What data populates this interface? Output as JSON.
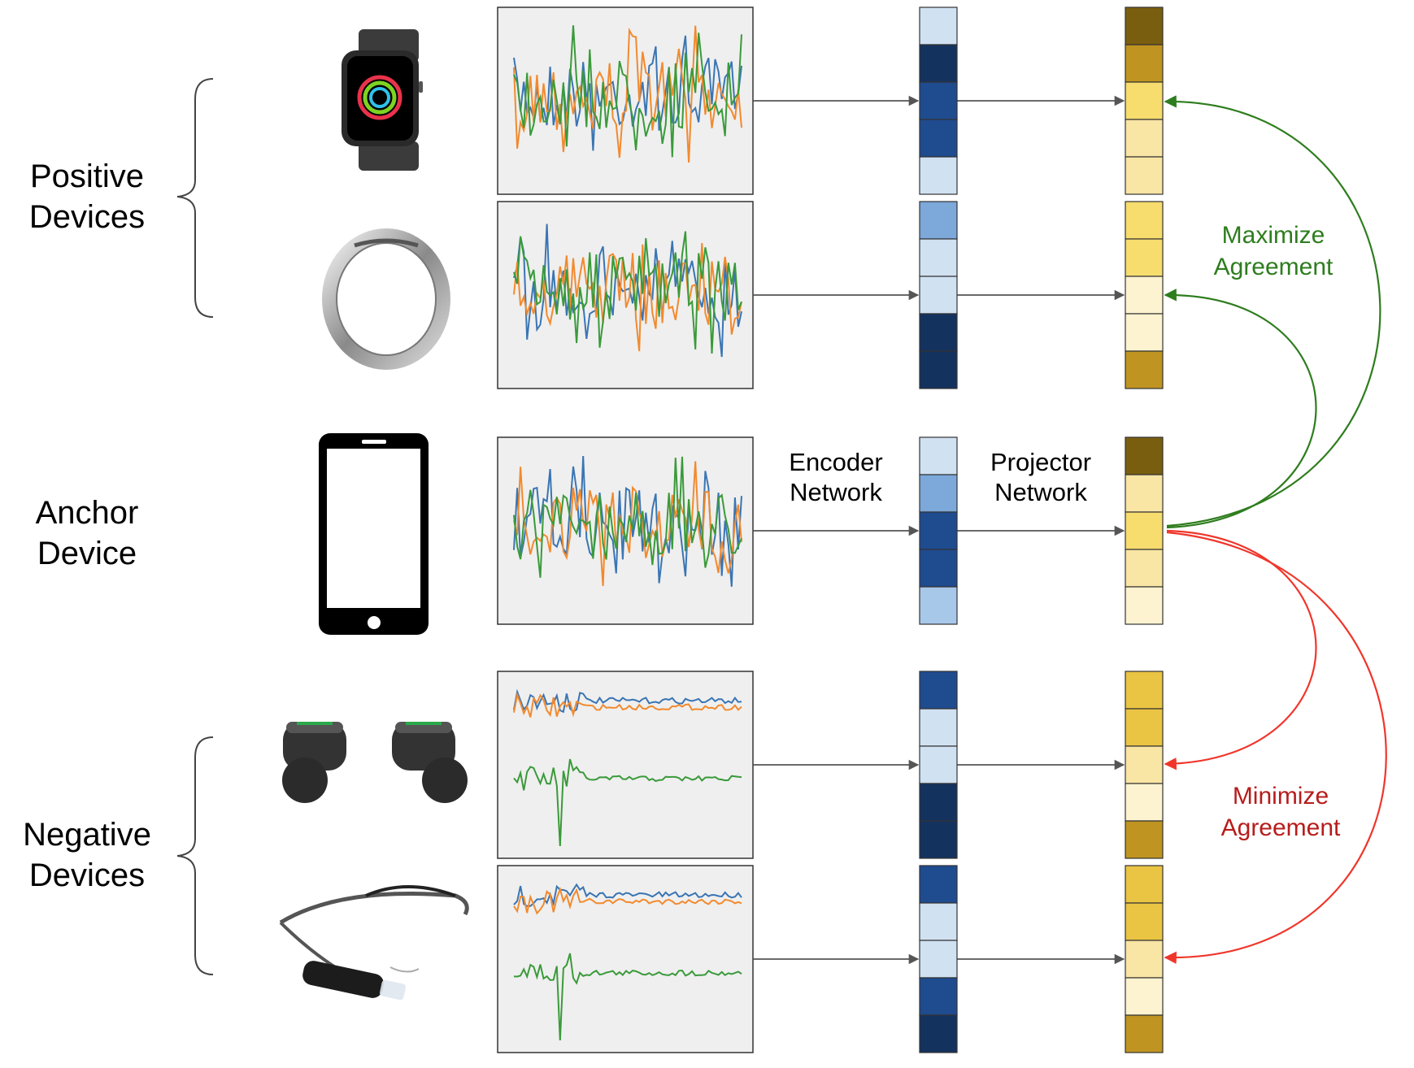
{
  "groups": {
    "positive": {
      "line1": "Positive",
      "line2": "Devices"
    },
    "anchor": {
      "line1": "Anchor",
      "line2": "Device"
    },
    "negative": {
      "line1": "Negative",
      "line2": "Devices"
    }
  },
  "encoder_label": {
    "line1": "Encoder",
    "line2": "Network"
  },
  "projector_label": {
    "line1": "Projector",
    "line2": "Network"
  },
  "maximize_label": {
    "line1": "Maximize",
    "line2": "Agreement"
  },
  "minimize_label": {
    "line1": "Minimize",
    "line2": "Agreement"
  },
  "devices": [
    {
      "name": "smartwatch",
      "icon": "smartwatch-icon",
      "group": "positive",
      "signal": "noisy"
    },
    {
      "name": "smart-ring",
      "icon": "ring-icon",
      "group": "positive",
      "signal": "noisy"
    },
    {
      "name": "smartphone",
      "icon": "smartphone-icon",
      "group": "anchor",
      "signal": "noisy"
    },
    {
      "name": "earbuds",
      "icon": "earbuds-icon",
      "group": "negative",
      "signal": "separated"
    },
    {
      "name": "smart-glasses",
      "icon": "glasses-icon",
      "group": "negative",
      "signal": "separated"
    }
  ],
  "colors": {
    "signal_blue": "#3a75b3",
    "signal_orange": "#f28a2e",
    "signal_green": "#3a9a3a",
    "plot_bg": "#efefef",
    "maximize_arrow": "#2e7d1e",
    "minimize_arrow": "#f0362b",
    "connector": "#555555"
  },
  "encoder_palette": [
    "#d0e1f2",
    "#14325e",
    "#1f4b8f",
    "#7ca8da",
    "#a8c8ea"
  ],
  "projector_palette": [
    "#7a5e10",
    "#bf9420",
    "#f7dc6e",
    "#f9e5a4",
    "#fdf3d0",
    "#eac443"
  ],
  "encoder_cells": [
    [
      0,
      1,
      2,
      2,
      0
    ],
    [
      3,
      0,
      0,
      1,
      1
    ],
    [
      0,
      3,
      2,
      2,
      4
    ],
    [
      2,
      0,
      0,
      1,
      1
    ],
    [
      2,
      0,
      0,
      2,
      1
    ]
  ],
  "projector_cells": [
    [
      0,
      1,
      2,
      3,
      3
    ],
    [
      2,
      2,
      4,
      4,
      1
    ],
    [
      0,
      3,
      2,
      3,
      4
    ],
    [
      5,
      5,
      3,
      4,
      1
    ],
    [
      5,
      5,
      3,
      4,
      1
    ]
  ]
}
